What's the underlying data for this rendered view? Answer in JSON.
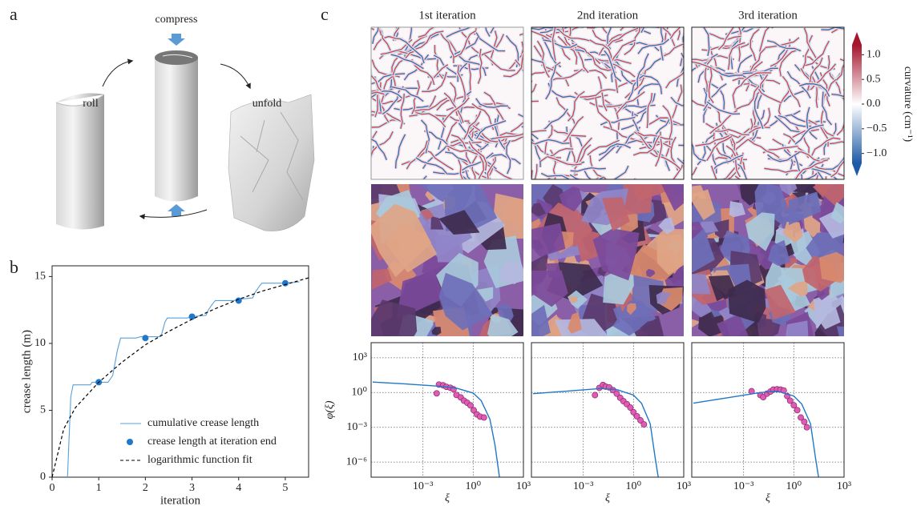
{
  "figure": {
    "panel_labels": [
      "a",
      "b",
      "c"
    ],
    "annotations": [
      "compress",
      "roll",
      "unfold"
    ]
  },
  "chart_data": [
    {
      "type": "line",
      "xlabel": "iteration",
      "ylabel": "crease length (m)",
      "xlim": [
        0,
        5.5
      ],
      "ylim": [
        0,
        15.8
      ],
      "xticks": [
        0,
        1,
        2,
        3,
        4,
        5
      ],
      "yticks": [
        0,
        5,
        10,
        15
      ],
      "legend": "lower right",
      "series": [
        {
          "name": "cumulative crease length",
          "color": "#5aa0d8",
          "style": "solid",
          "x": [
            0.33,
            0.36,
            0.4,
            0.45,
            0.82,
            0.86,
            1.2,
            1.3,
            1.4,
            1.47,
            1.8,
            1.9,
            2.3,
            2.35,
            2.42,
            2.47,
            2.9,
            3.0,
            3.3,
            3.35,
            3.45,
            3.5,
            3.9,
            4.0,
            4.3,
            4.35,
            4.45,
            4.5,
            4.9,
            5.0,
            5.3
          ],
          "values": [
            0,
            2.5,
            6.0,
            6.9,
            6.9,
            7.1,
            7.1,
            7.6,
            9.5,
            10.4,
            10.4,
            10.5,
            10.5,
            10.7,
            11.6,
            11.9,
            11.9,
            12.0,
            12.1,
            12.5,
            13.0,
            13.2,
            13.2,
            13.3,
            13.4,
            13.8,
            14.3,
            14.5,
            14.5,
            14.5,
            14.6
          ]
        },
        {
          "name": "crease length at iteration end",
          "color": "#1f78c8",
          "style": "points",
          "x": [
            1,
            2,
            3,
            4,
            5
          ],
          "values": [
            7.1,
            10.4,
            12.0,
            13.2,
            14.5
          ]
        },
        {
          "name": "logarithmic function fit",
          "color": "#000000",
          "style": "dashed",
          "x": [
            0,
            0.25,
            0.5,
            1,
            1.5,
            2,
            2.5,
            3,
            3.5,
            4,
            4.5,
            5,
            5.5
          ],
          "values": [
            0,
            3.6,
            5.2,
            7.1,
            8.6,
            9.9,
            10.9,
            11.8,
            12.6,
            13.3,
            13.9,
            14.4,
            14.9
          ]
        }
      ]
    },
    {
      "type": "colorbar",
      "label": "curvature (cm⁻¹)",
      "ylim": [
        -1.2,
        1.2
      ],
      "colors": [
        "#1d5ba6",
        "#ffffff",
        "#a5162e"
      ],
      "yticks": [
        {
          "value": 1,
          "label": "1.0"
        },
        {
          "value": 0.5,
          "label": "0.5"
        },
        {
          "value": 0,
          "label": "0.0"
        },
        {
          "value": -0.5,
          "label": "−0.5"
        },
        {
          "value": -1,
          "label": "−1.0"
        }
      ]
    },
    {
      "type": "scatter",
      "title": "1st iteration",
      "xscale": "log",
      "yscale": "log",
      "xlabel": "ξ",
      "ylabel": "φ(ξ)",
      "grid": true,
      "xlim": [
        8e-07,
        1000
      ],
      "ylim": [
        5e-08,
        20000
      ],
      "xticks": [
        {
          "value": 0.001,
          "label": "10⁻³"
        },
        {
          "value": 1,
          "label": "10⁰"
        },
        {
          "value": 1000,
          "label": "10³"
        }
      ],
      "yticks": [
        {
          "value": 1000,
          "label": "10³"
        },
        {
          "value": 1,
          "label": "10⁰"
        },
        {
          "value": 0.001,
          "label": "10⁻³"
        },
        {
          "value": 1e-06,
          "label": "10⁻⁶"
        }
      ],
      "series": [
        {
          "color": "#e05bb4",
          "style": "points",
          "x": [
            0.0066,
            0.009,
            0.016,
            0.025,
            0.043,
            0.067,
            0.1,
            0.18,
            0.28,
            0.44,
            0.69,
            1.07,
            1.66,
            2.6,
            4.4
          ],
          "values": [
            0.85,
            4.9,
            4.2,
            3.1,
            2.6,
            1.9,
            0.62,
            0.38,
            0.2,
            0.13,
            0.078,
            0.03,
            0.013,
            0.0083,
            0.007
          ]
        },
        {
          "color": "#1f78c8",
          "style": "solid",
          "x": [
            1e-06,
            0.0001,
            0.01,
            0.1,
            1,
            3,
            10,
            20,
            37
          ],
          "values": [
            8,
            5.5,
            3.5,
            2.4,
            0.9,
            0.2,
            0.005,
            3e-05,
            5e-08
          ]
        }
      ]
    },
    {
      "type": "scatter",
      "title": "2nd iteration",
      "xscale": "log",
      "yscale": "log",
      "xlabel": "ξ",
      "grid": true,
      "show_ytick_labels": false,
      "xlim": [
        8e-07,
        1000
      ],
      "ylim": [
        5e-08,
        20000
      ],
      "xticks": [
        {
          "value": 0.001,
          "label": "10⁻³"
        },
        {
          "value": 1,
          "label": "10⁰"
        },
        {
          "value": 1000,
          "label": "10³"
        }
      ],
      "yticks": [
        1000,
        1,
        0.001,
        1e-06
      ],
      "series": [
        {
          "color": "#e05bb4",
          "style": "points",
          "x": [
            0.005,
            0.009,
            0.015,
            0.022,
            0.035,
            0.06,
            0.1,
            0.16,
            0.25,
            0.4,
            0.65,
            1.0,
            1.6,
            2.6,
            4.2
          ],
          "values": [
            0.6,
            2.5,
            4.5,
            3.2,
            2.8,
            1.6,
            0.8,
            0.35,
            0.18,
            0.1,
            0.05,
            0.02,
            0.009,
            0.004,
            0.0018
          ]
        },
        {
          "color": "#1f78c8",
          "style": "solid",
          "x": [
            1e-06,
            0.0001,
            0.01,
            0.1,
            1,
            3,
            10,
            20,
            30
          ],
          "values": [
            0.8,
            1.3,
            2.2,
            1.8,
            0.6,
            0.12,
            0.002,
            2e-06,
            5e-08
          ]
        }
      ]
    },
    {
      "type": "scatter",
      "title": "3rd iteration",
      "xscale": "log",
      "yscale": "log",
      "xlabel": "ξ",
      "grid": true,
      "show_ytick_labels": false,
      "xlim": [
        8e-07,
        1000
      ],
      "ylim": [
        5e-08,
        20000
      ],
      "xticks": [
        {
          "value": 0.001,
          "label": "10⁻³"
        },
        {
          "value": 1,
          "label": "10⁰"
        },
        {
          "value": 1000,
          "label": "10³"
        }
      ],
      "yticks": [
        1000,
        1,
        0.001,
        1e-06
      ],
      "series": [
        {
          "color": "#e05bb4",
          "style": "points",
          "x": [
            0.003,
            0.01,
            0.015,
            0.025,
            0.04,
            0.06,
            0.1,
            0.16,
            0.25,
            0.4,
            0.6,
            1.0,
            1.6,
            2.6,
            4.2,
            6
          ],
          "values": [
            1.3,
            0.6,
            0.4,
            0.8,
            1.2,
            1.8,
            1.9,
            1.8,
            1.5,
            0.5,
            0.2,
            0.08,
            0.03,
            0.007,
            0.003,
            0.001
          ]
        },
        {
          "color": "#1f78c8",
          "style": "solid",
          "x": [
            1e-06,
            0.0001,
            0.01,
            0.1,
            1,
            3,
            10,
            20,
            30
          ],
          "values": [
            0.12,
            0.35,
            1.0,
            1.3,
            0.5,
            0.1,
            0.002,
            2e-06,
            5e-08
          ]
        }
      ]
    }
  ]
}
